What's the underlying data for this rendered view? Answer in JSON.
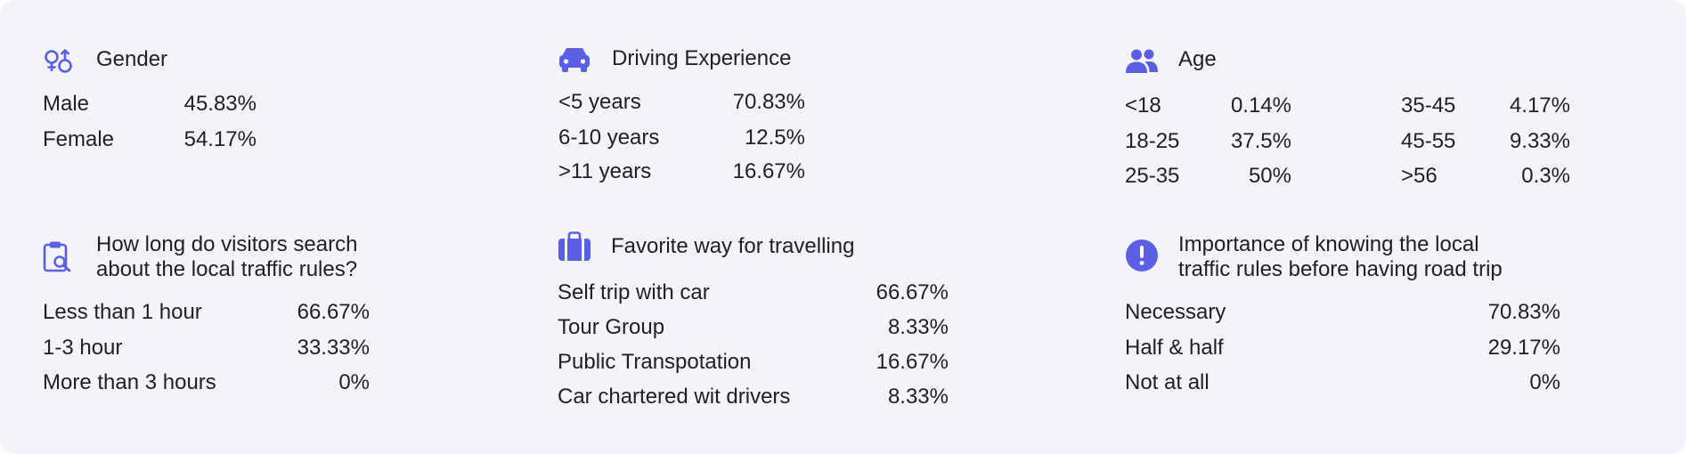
{
  "accent_color": "#5b5fe6",
  "gender": {
    "icon": "gender-icon",
    "title": "Gender",
    "rows": [
      {
        "label": "Male",
        "value": "45.83%"
      },
      {
        "label": "Female",
        "value": "54.17%"
      }
    ]
  },
  "driving": {
    "icon": "car-icon",
    "title": "Driving Experience",
    "rows": [
      {
        "label": "<5 years",
        "value": "70.83%"
      },
      {
        "label": "6-10 years",
        "value": "12.5%"
      },
      {
        "label": ">11 years",
        "value": "16.67%"
      }
    ]
  },
  "age": {
    "icon": "users-icon",
    "title": "Age",
    "rows_left": [
      {
        "label": "<18",
        "value": "0.14%"
      },
      {
        "label": "18-25",
        "value": "37.5%"
      },
      {
        "label": "25-35",
        "value": "50%"
      }
    ],
    "rows_right": [
      {
        "label": "35-45",
        "value": "4.17%"
      },
      {
        "label": "45-55",
        "value": "9.33%"
      },
      {
        "label": ">56",
        "value": "0.3%"
      }
    ]
  },
  "search": {
    "icon": "clipboard-search-icon",
    "title_line1": "How long do visitors search",
    "title_line2": "about the local traffic rules?",
    "rows": [
      {
        "label": "Less than 1 hour",
        "value": "66.67%"
      },
      {
        "label": "1-3 hour",
        "value": "33.33%"
      },
      {
        "label": "More than 3 hours",
        "value": "0%"
      }
    ]
  },
  "travel": {
    "icon": "suitcase-icon",
    "title": "Favorite way for travelling",
    "rows": [
      {
        "label": "Self trip with car",
        "value": "66.67%"
      },
      {
        "label": "Tour Group",
        "value": "8.33%"
      },
      {
        "label": "Public Transpotation",
        "value": "16.67%"
      },
      {
        "label": "Car chartered wit drivers",
        "value": "8.33%"
      }
    ]
  },
  "importance": {
    "icon": "exclamation-circle-icon",
    "title_line1": "Importance of knowing the local",
    "title_line2": "traffic rules before having road trip",
    "rows": [
      {
        "label": "Necessary",
        "value": "70.83%"
      },
      {
        "label": "Half & half",
        "value": "29.17%"
      },
      {
        "label": "Not at all",
        "value": "0%"
      }
    ]
  }
}
